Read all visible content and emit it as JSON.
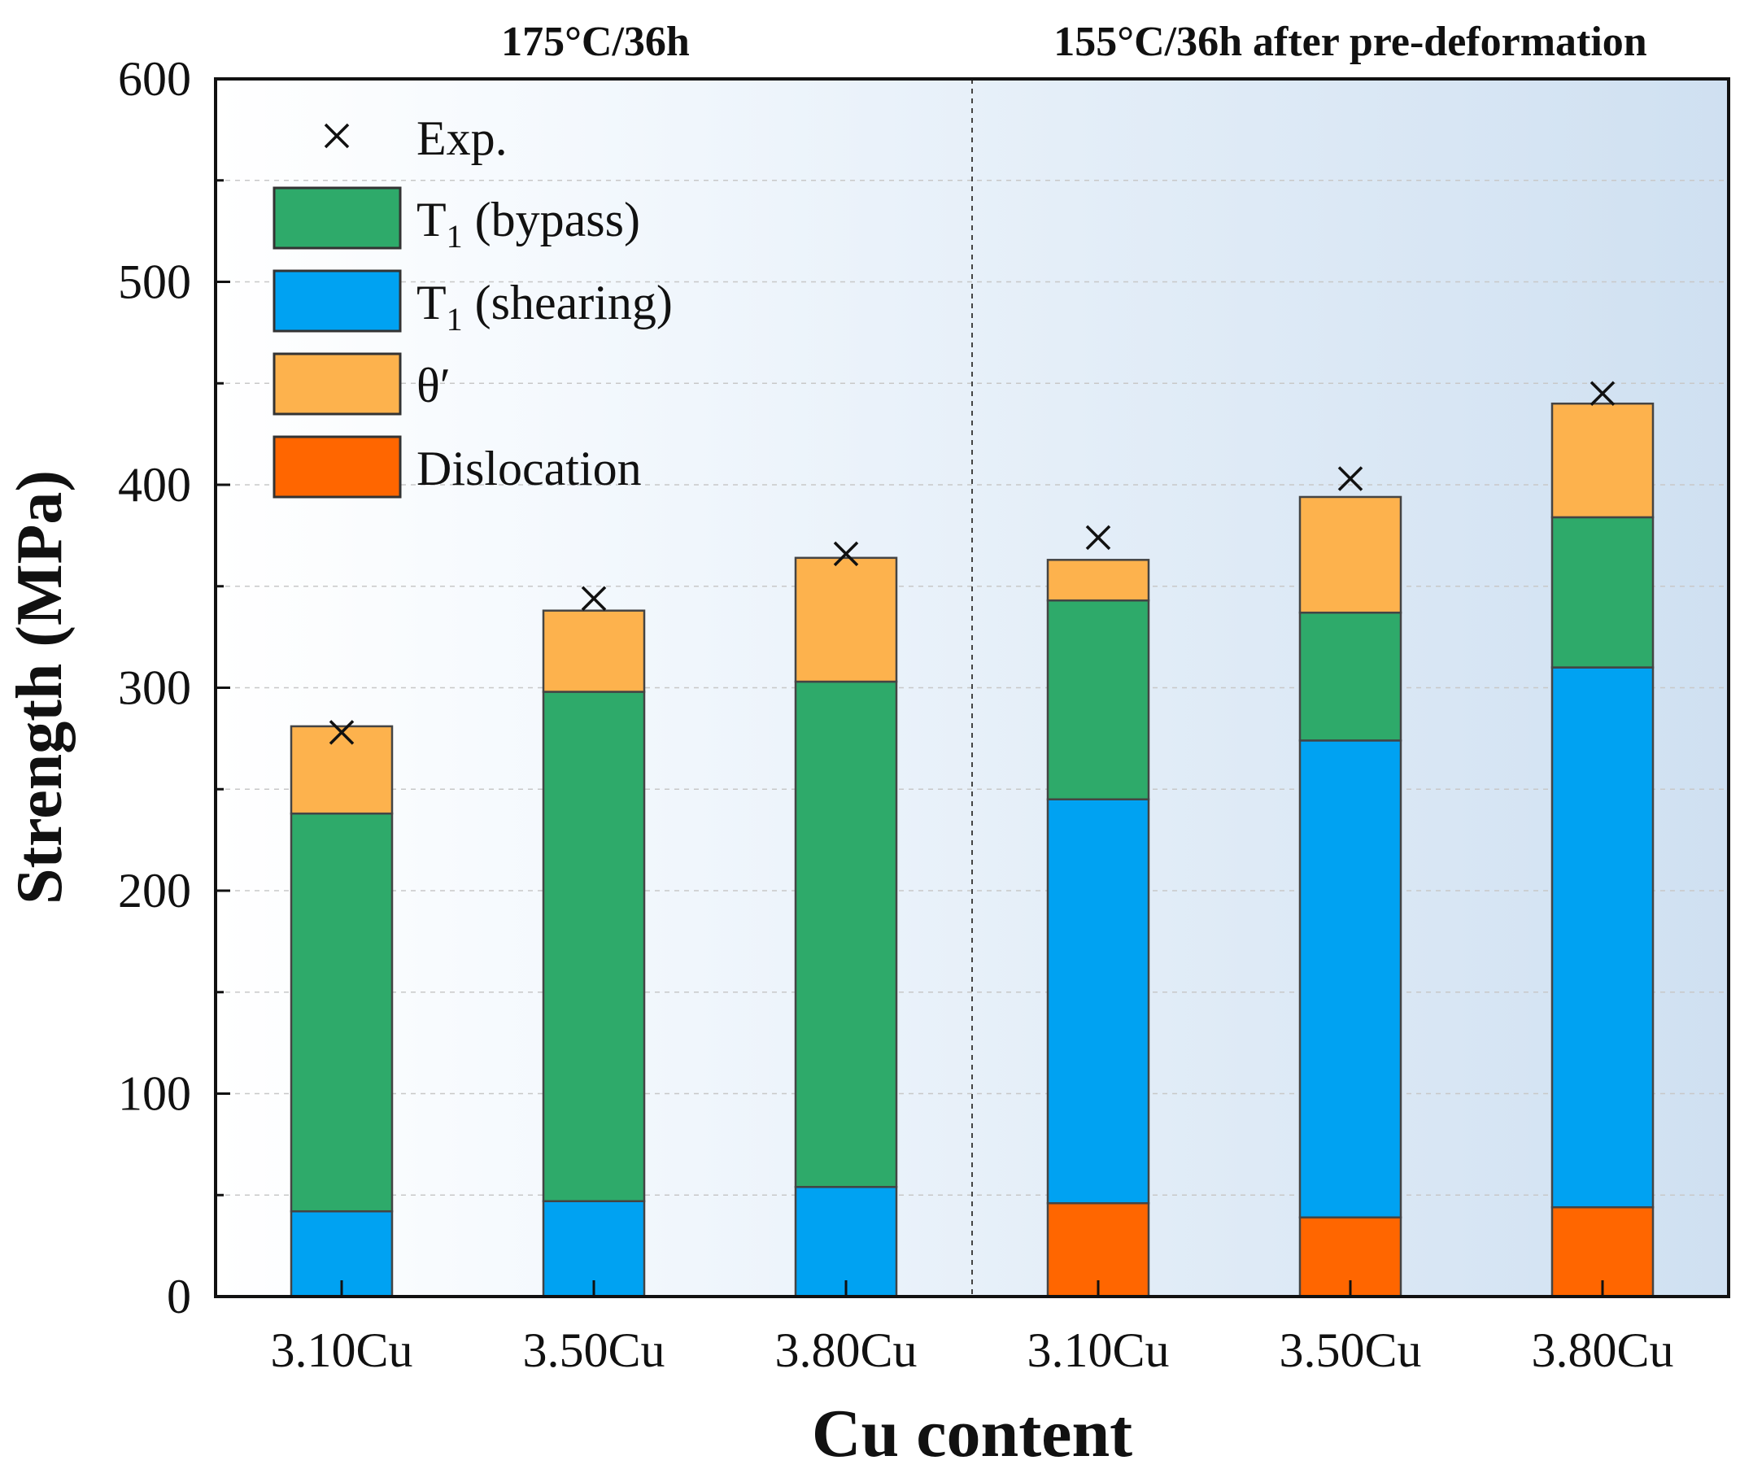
{
  "chart_data": {
    "type": "bar",
    "stacked": true,
    "title": "",
    "xlabel": "Cu content",
    "ylabel": "Strength (MPa)",
    "ylim": [
      0,
      600
    ],
    "yticks": [
      0,
      100,
      200,
      300,
      400,
      500,
      600
    ],
    "categories": [
      "3.10Cu",
      "3.50Cu",
      "3.80Cu",
      "3.10Cu",
      "3.50Cu",
      "3.80Cu"
    ],
    "groups": [
      {
        "label": "175°C/36h",
        "categories": [
          0,
          1,
          2
        ]
      },
      {
        "label": "155°C/36h after pre-deformation",
        "categories": [
          3,
          4,
          5
        ]
      }
    ],
    "series": [
      {
        "name": "Dislocation",
        "color": "#FF6600",
        "values": [
          0,
          0,
          0,
          46,
          39,
          44
        ]
      },
      {
        "name": "T1 (shearing)",
        "color": "#00A2F2",
        "values": [
          42,
          47,
          54,
          199,
          235,
          266
        ]
      },
      {
        "name": "T1 (bypass)",
        "color": "#2EAA6A",
        "values": [
          196,
          251,
          249,
          98,
          63,
          74
        ]
      },
      {
        "name": "θ′",
        "color": "#FDB24D",
        "values": [
          43,
          40,
          61,
          20,
          57,
          56
        ]
      }
    ],
    "experimental": {
      "name": "Exp.",
      "marker": "x",
      "values": [
        278,
        344,
        366,
        374,
        403,
        445
      ]
    },
    "legend": {
      "position": "top-left",
      "entries": [
        {
          "label": "Exp.",
          "sub": "",
          "suffix": ""
        },
        {
          "label": "T",
          "sub": "1",
          "suffix": " (bypass)"
        },
        {
          "label": "T",
          "sub": "1",
          "suffix": " (shearing)"
        },
        {
          "label": "θ′",
          "sub": "",
          "suffix": ""
        },
        {
          "label": "Dislocation",
          "sub": "",
          "suffix": ""
        }
      ]
    },
    "grid": true
  }
}
